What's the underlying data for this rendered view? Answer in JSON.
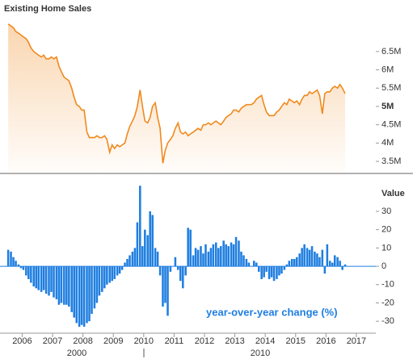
{
  "chart_data": [
    {
      "type": "line",
      "title": "Existing Home Sales",
      "x": [
        2005.54,
        2005.63,
        2005.71,
        2005.79,
        2005.88,
        2005.96,
        2006.04,
        2006.13,
        2006.21,
        2006.29,
        2006.38,
        2006.46,
        2006.54,
        2006.63,
        2006.71,
        2006.79,
        2006.88,
        2006.96,
        2007.04,
        2007.13,
        2007.21,
        2007.29,
        2007.38,
        2007.46,
        2007.54,
        2007.63,
        2007.71,
        2007.79,
        2007.88,
        2007.96,
        2008.04,
        2008.13,
        2008.21,
        2008.29,
        2008.38,
        2008.46,
        2008.54,
        2008.63,
        2008.71,
        2008.79,
        2008.88,
        2008.96,
        2009.04,
        2009.13,
        2009.21,
        2009.29,
        2009.38,
        2009.46,
        2009.54,
        2009.63,
        2009.71,
        2009.79,
        2009.88,
        2009.96,
        2010.04,
        2010.13,
        2010.21,
        2010.29,
        2010.38,
        2010.46,
        2010.54,
        2010.63,
        2010.71,
        2010.79,
        2010.88,
        2010.96,
        2011.04,
        2011.13,
        2011.21,
        2011.29,
        2011.38,
        2011.46,
        2011.54,
        2011.63,
        2011.71,
        2011.79,
        2011.88,
        2011.96,
        2012.04,
        2012.13,
        2012.21,
        2012.29,
        2012.38,
        2012.46,
        2012.54,
        2012.63,
        2012.71,
        2012.79,
        2012.88,
        2012.96,
        2013.04,
        2013.13,
        2013.21,
        2013.29,
        2013.38,
        2013.46,
        2013.54,
        2013.63,
        2013.71,
        2013.79,
        2013.88,
        2013.96,
        2014.04,
        2014.13,
        2014.21,
        2014.29,
        2014.38,
        2014.46,
        2014.54,
        2014.63,
        2014.71,
        2014.79,
        2014.88,
        2014.96,
        2015.04,
        2015.13,
        2015.21,
        2015.29,
        2015.38,
        2015.46,
        2015.54,
        2015.63,
        2015.71,
        2015.79,
        2015.88,
        2015.96,
        2016.04,
        2016.13,
        2016.21,
        2016.29,
        2016.38,
        2016.46,
        2016.54,
        2016.63
      ],
      "series": [
        {
          "name": "Existing Home Sales",
          "color": "#f0891e",
          "values": [
            7.25,
            7.2,
            7.15,
            7.05,
            7.0,
            6.95,
            6.9,
            6.85,
            6.75,
            6.6,
            6.5,
            6.45,
            6.4,
            6.35,
            6.4,
            6.3,
            6.3,
            6.35,
            6.3,
            6.35,
            6.1,
            5.95,
            5.8,
            5.75,
            5.7,
            5.5,
            5.25,
            5.05,
            5.0,
            4.9,
            4.9,
            4.3,
            4.15,
            4.15,
            4.15,
            4.2,
            4.15,
            4.15,
            4.2,
            4.1,
            3.75,
            3.95,
            3.85,
            3.95,
            3.9,
            3.95,
            4.0,
            4.25,
            4.45,
            4.6,
            4.75,
            5.0,
            5.45,
            5.0,
            4.6,
            4.55,
            4.7,
            5.0,
            5.1,
            4.7,
            4.4,
            3.45,
            3.8,
            4.0,
            4.1,
            4.2,
            4.4,
            4.55,
            4.3,
            4.25,
            4.3,
            4.2,
            4.25,
            4.3,
            4.35,
            4.4,
            4.35,
            4.5,
            4.5,
            4.55,
            4.5,
            4.55,
            4.6,
            4.55,
            4.5,
            4.6,
            4.7,
            4.75,
            4.8,
            4.9,
            4.9,
            4.85,
            4.95,
            5.0,
            5.05,
            5.05,
            5.05,
            5.1,
            5.2,
            5.25,
            5.3,
            5.05,
            4.85,
            4.75,
            4.75,
            4.75,
            4.85,
            4.9,
            5.0,
            5.1,
            5.05,
            5.2,
            5.15,
            5.1,
            5.15,
            5.05,
            5.2,
            5.3,
            5.3,
            5.4,
            5.35,
            5.4,
            5.45,
            5.3,
            4.8,
            5.35,
            5.4,
            5.4,
            5.5,
            5.55,
            5.5,
            5.6,
            5.5,
            5.35
          ]
        }
      ],
      "xlim": [
        2005.27,
        2017.64
      ],
      "ylim": [
        3.17,
        7.51
      ],
      "yticks": [
        {
          "value": 3.5,
          "label": "3.5M"
        },
        {
          "value": 4,
          "label": "4M"
        },
        {
          "value": 4.5,
          "label": "4.5M"
        },
        {
          "value": 5,
          "label": "5M"
        },
        {
          "value": 5.5,
          "label": "5.5M"
        },
        {
          "value": 6,
          "label": "6M"
        },
        {
          "value": 6.5,
          "label": "6.5M"
        }
      ]
    },
    {
      "type": "bar",
      "y_label": "Value",
      "annotation": "year-over-year change (%)",
      "x": [
        2005.54,
        2005.63,
        2005.71,
        2005.79,
        2005.88,
        2005.96,
        2006.04,
        2006.13,
        2006.21,
        2006.29,
        2006.38,
        2006.46,
        2006.54,
        2006.63,
        2006.71,
        2006.79,
        2006.88,
        2006.96,
        2007.04,
        2007.13,
        2007.21,
        2007.29,
        2007.38,
        2007.46,
        2007.54,
        2007.63,
        2007.71,
        2007.79,
        2007.88,
        2007.96,
        2008.04,
        2008.13,
        2008.21,
        2008.29,
        2008.38,
        2008.46,
        2008.54,
        2008.63,
        2008.71,
        2008.79,
        2008.88,
        2008.96,
        2009.04,
        2009.13,
        2009.21,
        2009.29,
        2009.38,
        2009.46,
        2009.54,
        2009.63,
        2009.71,
        2009.79,
        2009.88,
        2009.96,
        2010.04,
        2010.13,
        2010.21,
        2010.29,
        2010.38,
        2010.46,
        2010.54,
        2010.63,
        2010.71,
        2010.79,
        2010.88,
        2010.96,
        2011.04,
        2011.13,
        2011.21,
        2011.29,
        2011.38,
        2011.46,
        2011.54,
        2011.63,
        2011.71,
        2011.79,
        2011.88,
        2011.96,
        2012.04,
        2012.13,
        2012.21,
        2012.29,
        2012.38,
        2012.46,
        2012.54,
        2012.63,
        2012.71,
        2012.79,
        2012.88,
        2012.96,
        2013.04,
        2013.13,
        2013.21,
        2013.29,
        2013.38,
        2013.46,
        2013.54,
        2013.63,
        2013.71,
        2013.79,
        2013.88,
        2013.96,
        2014.04,
        2014.13,
        2014.21,
        2014.29,
        2014.38,
        2014.46,
        2014.54,
        2014.63,
        2014.71,
        2014.79,
        2014.88,
        2014.96,
        2015.04,
        2015.13,
        2015.21,
        2015.29,
        2015.38,
        2015.46,
        2015.54,
        2015.63,
        2015.71,
        2015.79,
        2015.88,
        2015.96,
        2016.04,
        2016.13,
        2016.21,
        2016.29,
        2016.38,
        2016.46,
        2016.54,
        2016.63
      ],
      "series": [
        {
          "name": "year-over-year change",
          "color": "#1f7ee0",
          "values": [
            9,
            8,
            5,
            3,
            1,
            -1,
            -2,
            -5,
            -7,
            -9,
            -11,
            -12,
            -13,
            -14,
            -13,
            -15,
            -16,
            -14,
            -17,
            -18,
            -21,
            -20,
            -21,
            -21,
            -22,
            -25,
            -28,
            -31,
            -33,
            -32,
            -33,
            -31,
            -30,
            -26,
            -23,
            -20,
            -16,
            -14,
            -12,
            -10,
            -9,
            -8,
            -7,
            -5,
            -4,
            -2,
            2,
            4,
            6,
            8,
            10,
            24,
            44,
            11,
            20,
            17,
            30,
            28,
            10,
            8,
            -5,
            -22,
            -20,
            -27,
            -3,
            0,
            5,
            -2,
            -8,
            -12,
            -5,
            21,
            20,
            6,
            10,
            9,
            11,
            7,
            12,
            8,
            10,
            12,
            13,
            10,
            11,
            14,
            12,
            11,
            13,
            12,
            16,
            14,
            8,
            6,
            4,
            2,
            0,
            3,
            2,
            -3,
            -7,
            -6,
            -3,
            -7,
            -6,
            -8,
            -7,
            -5,
            -4,
            -2,
            1,
            3,
            4,
            4,
            5,
            7,
            10,
            12,
            10,
            9,
            11,
            8,
            7,
            5,
            9,
            -4,
            12,
            3,
            2,
            6,
            5,
            3,
            -2,
            1
          ]
        }
      ],
      "xlim": [
        2005.27,
        2017.64
      ],
      "ylim": [
        -35.2,
        47.6
      ],
      "yticks": [
        -30,
        -20,
        -10,
        0,
        10,
        20,
        30
      ],
      "xticks": [
        2006,
        2007,
        2008,
        2009,
        2010,
        2011,
        2012,
        2013,
        2014,
        2015,
        2016,
        2017
      ],
      "navigator_labels": [
        {
          "value": 2000,
          "label": "2000"
        },
        {
          "value": 2010,
          "label": "2010"
        }
      ]
    }
  ]
}
